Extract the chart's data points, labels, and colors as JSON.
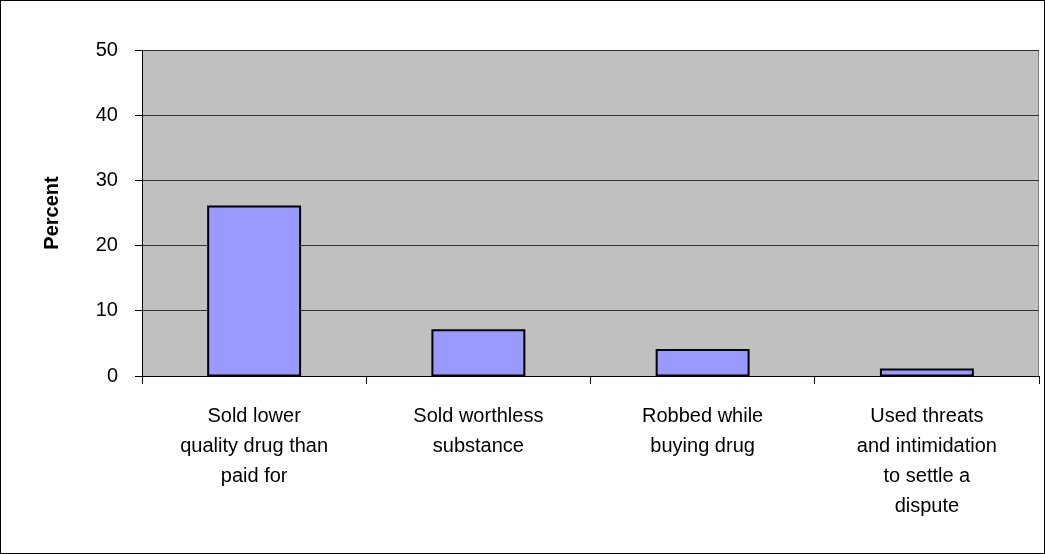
{
  "chart_data": {
    "type": "bar",
    "ylabel": "Percent",
    "categories": [
      "Sold lower\nquality drug than\npaid for",
      "Sold worthless\nsubstance",
      "Robbed while\nbuying drug",
      "Used threats\nand intimidation\nto settle a\ndispute"
    ],
    "values": [
      26,
      7,
      4,
      1
    ],
    "color": "#9999ff",
    "ylim": [
      0,
      50
    ],
    "yticks": [
      0,
      10,
      20,
      30,
      40,
      50
    ],
    "grid": "y"
  }
}
